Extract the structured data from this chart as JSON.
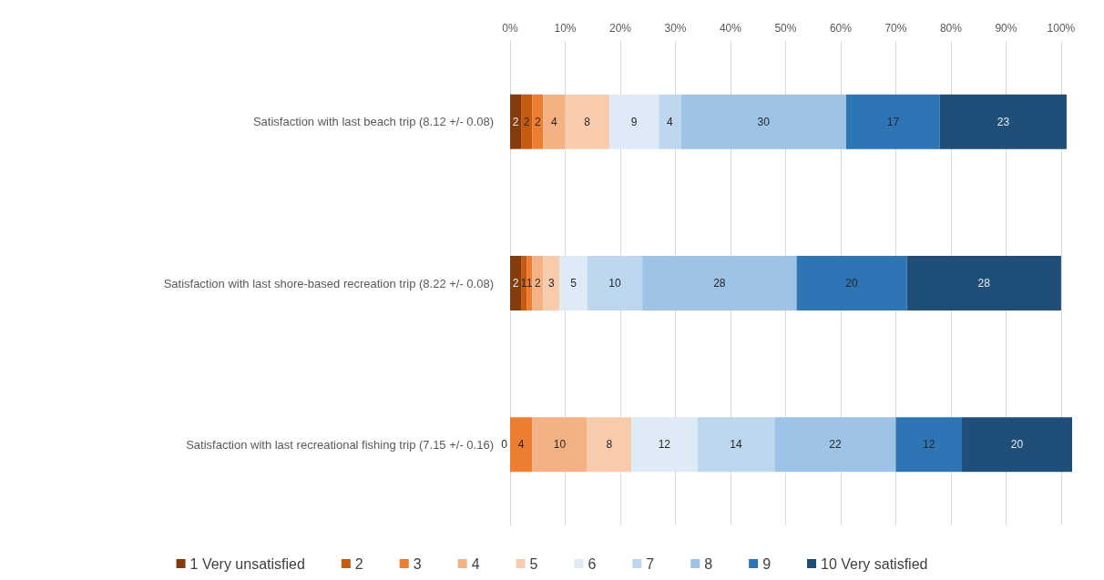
{
  "chart_data": {
    "type": "bar",
    "orientation": "horizontal",
    "stacked": true,
    "data_labels": true,
    "grid": "x",
    "legend": "bottom",
    "categories": [
      "Satisfaction with last beach trip (8.12 +/- 0.08)",
      "Satisfaction with last shore-based recreation trip (8.22 +/- 0.08)",
      "Satisfaction with last recreational fishing trip (7.15 +/- 0.16)"
    ],
    "xlim": [
      0,
      102
    ],
    "xticks": [
      {
        "value": 0,
        "label": "0%"
      },
      {
        "value": 10,
        "label": "10%"
      },
      {
        "value": 20,
        "label": "20%"
      },
      {
        "value": 30,
        "label": "30%"
      },
      {
        "value": 40,
        "label": "40%"
      },
      {
        "value": 50,
        "label": "50%"
      },
      {
        "value": 60,
        "label": "60%"
      },
      {
        "value": 70,
        "label": "70%"
      },
      {
        "value": 80,
        "label": "80%"
      },
      {
        "value": 90,
        "label": "90%"
      },
      {
        "value": 100,
        "label": "100%"
      }
    ],
    "series": [
      {
        "name": "1 Very unsatisfied",
        "color": "#843c0c",
        "values": [
          2,
          2,
          0
        ]
      },
      {
        "name": "2",
        "color": "#c55a11",
        "values": [
          2,
          1,
          null
        ]
      },
      {
        "name": "3",
        "color": "#ed7d31",
        "values": [
          2,
          1,
          4
        ]
      },
      {
        "name": "4",
        "color": "#f4b183",
        "values": [
          4,
          2,
          10
        ]
      },
      {
        "name": "5",
        "color": "#f8cbad",
        "values": [
          8,
          3,
          8
        ]
      },
      {
        "name": "6",
        "color": "#deebf7",
        "values": [
          9,
          5,
          12
        ]
      },
      {
        "name": "7",
        "color": "#bdd7ee",
        "values": [
          4,
          10,
          14
        ]
      },
      {
        "name": "8",
        "color": "#9dc3e6",
        "values": [
          30,
          28,
          22
        ]
      },
      {
        "name": "9",
        "color": "#2e75b6",
        "values": [
          17,
          20,
          12
        ]
      },
      {
        "name": "10 Very satisfied",
        "color": "#1f4e79",
        "values": [
          23,
          28,
          20
        ]
      }
    ]
  }
}
